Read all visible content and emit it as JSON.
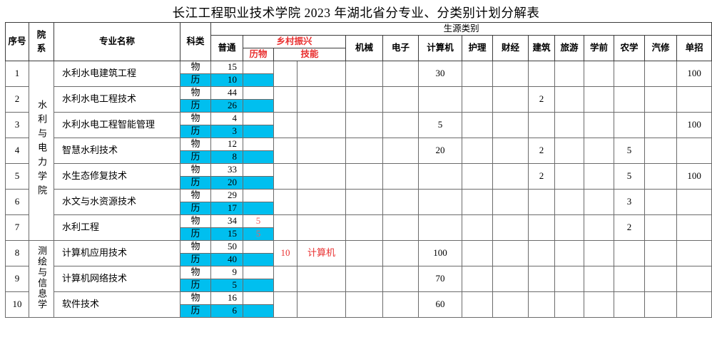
{
  "title": "长江工程职业技术学院 2023 年湖北省分专业、分类别计划分解表",
  "colors": {
    "highlight_cyan": "#00bfef",
    "red_header": "#e93030",
    "red_value": "#f2605f"
  },
  "table": {
    "headers": {
      "xuhao": "序号",
      "yuanxi": "院系",
      "zhuanye": "专业名称",
      "kelei": "科类",
      "shengyuan": "生源类别",
      "putong": "普通",
      "xiangcun": "乡村振兴",
      "liwu": "历物",
      "jineng": "技能",
      "categories": [
        "机械",
        "电子",
        "计算机",
        "护理",
        "财经",
        "建筑",
        "旅游",
        "学前",
        "农学",
        "汽修",
        "单招"
      ]
    },
    "kelei_wu": "物",
    "kelei_li": "历",
    "departments": [
      {
        "name": "水利与电力学院",
        "span": 7
      },
      {
        "name": "测绘与信息学",
        "span": 3
      }
    ],
    "rows": [
      {
        "no": "1",
        "major": "水利水电建筑工程",
        "wu_putong": "15",
        "li_putong": "10",
        "wu_liwu": "",
        "li_liwu": "",
        "jineng_num": "",
        "jineng_name": "",
        "cats": [
          "",
          "",
          "30",
          "",
          "",
          "",
          "",
          "",
          "",
          "",
          "100"
        ]
      },
      {
        "no": "2",
        "major": "水利水电工程技术",
        "wu_putong": "44",
        "li_putong": "26",
        "wu_liwu": "",
        "li_liwu": "",
        "jineng_num": "",
        "jineng_name": "",
        "cats": [
          "",
          "",
          "",
          "",
          "",
          "2",
          "",
          "",
          "",
          "",
          ""
        ]
      },
      {
        "no": "3",
        "major": "水利水电工程智能管理",
        "wu_putong": "4",
        "li_putong": "3",
        "wu_liwu": "",
        "li_liwu": "",
        "jineng_num": "",
        "jineng_name": "",
        "cats": [
          "",
          "",
          "5",
          "",
          "",
          "",
          "",
          "",
          "",
          "",
          "100"
        ]
      },
      {
        "no": "4",
        "major": "智慧水利技术",
        "wu_putong": "12",
        "li_putong": "8",
        "wu_liwu": "",
        "li_liwu": "",
        "jineng_num": "",
        "jineng_name": "",
        "cats": [
          "",
          "",
          "20",
          "",
          "",
          "2",
          "",
          "",
          "5",
          "",
          ""
        ]
      },
      {
        "no": "5",
        "major": "水生态修复技术",
        "wu_putong": "33",
        "li_putong": "20",
        "wu_liwu": "",
        "li_liwu": "",
        "jineng_num": "",
        "jineng_name": "",
        "cats": [
          "",
          "",
          "",
          "",
          "",
          "2",
          "",
          "",
          "5",
          "",
          "100"
        ]
      },
      {
        "no": "6",
        "major": "水文与水资源技术",
        "wu_putong": "29",
        "li_putong": "17",
        "wu_liwu": "",
        "li_liwu": "",
        "jineng_num": "",
        "jineng_name": "",
        "cats": [
          "",
          "",
          "",
          "",
          "",
          "",
          "",
          "",
          "3",
          "",
          ""
        ]
      },
      {
        "no": "7",
        "major": "水利工程",
        "wu_putong": "34",
        "li_putong": "15",
        "wu_liwu": "5",
        "li_liwu": "5",
        "jineng_num": "",
        "jineng_name": "",
        "cats": [
          "",
          "",
          "",
          "",
          "",
          "",
          "",
          "",
          "2",
          "",
          ""
        ]
      },
      {
        "no": "8",
        "major": "计算机应用技术",
        "wu_putong": "50",
        "li_putong": "40",
        "wu_liwu": "",
        "li_liwu": "",
        "jineng_num": "10",
        "jineng_name": "计算机",
        "cats": [
          "",
          "",
          "100",
          "",
          "",
          "",
          "",
          "",
          "",
          "",
          ""
        ]
      },
      {
        "no": "9",
        "major": "计算机网络技术",
        "wu_putong": "9",
        "li_putong": "5",
        "wu_liwu": "",
        "li_liwu": "",
        "jineng_num": "",
        "jineng_name": "",
        "cats": [
          "",
          "",
          "70",
          "",
          "",
          "",
          "",
          "",
          "",
          "",
          ""
        ]
      },
      {
        "no": "10",
        "major": "软件技术",
        "wu_putong": "16",
        "li_putong": "6",
        "wu_liwu": "",
        "li_liwu": "",
        "jineng_num": "",
        "jineng_name": "",
        "cats": [
          "",
          "",
          "60",
          "",
          "",
          "",
          "",
          "",
          "",
          "",
          ""
        ]
      }
    ]
  }
}
